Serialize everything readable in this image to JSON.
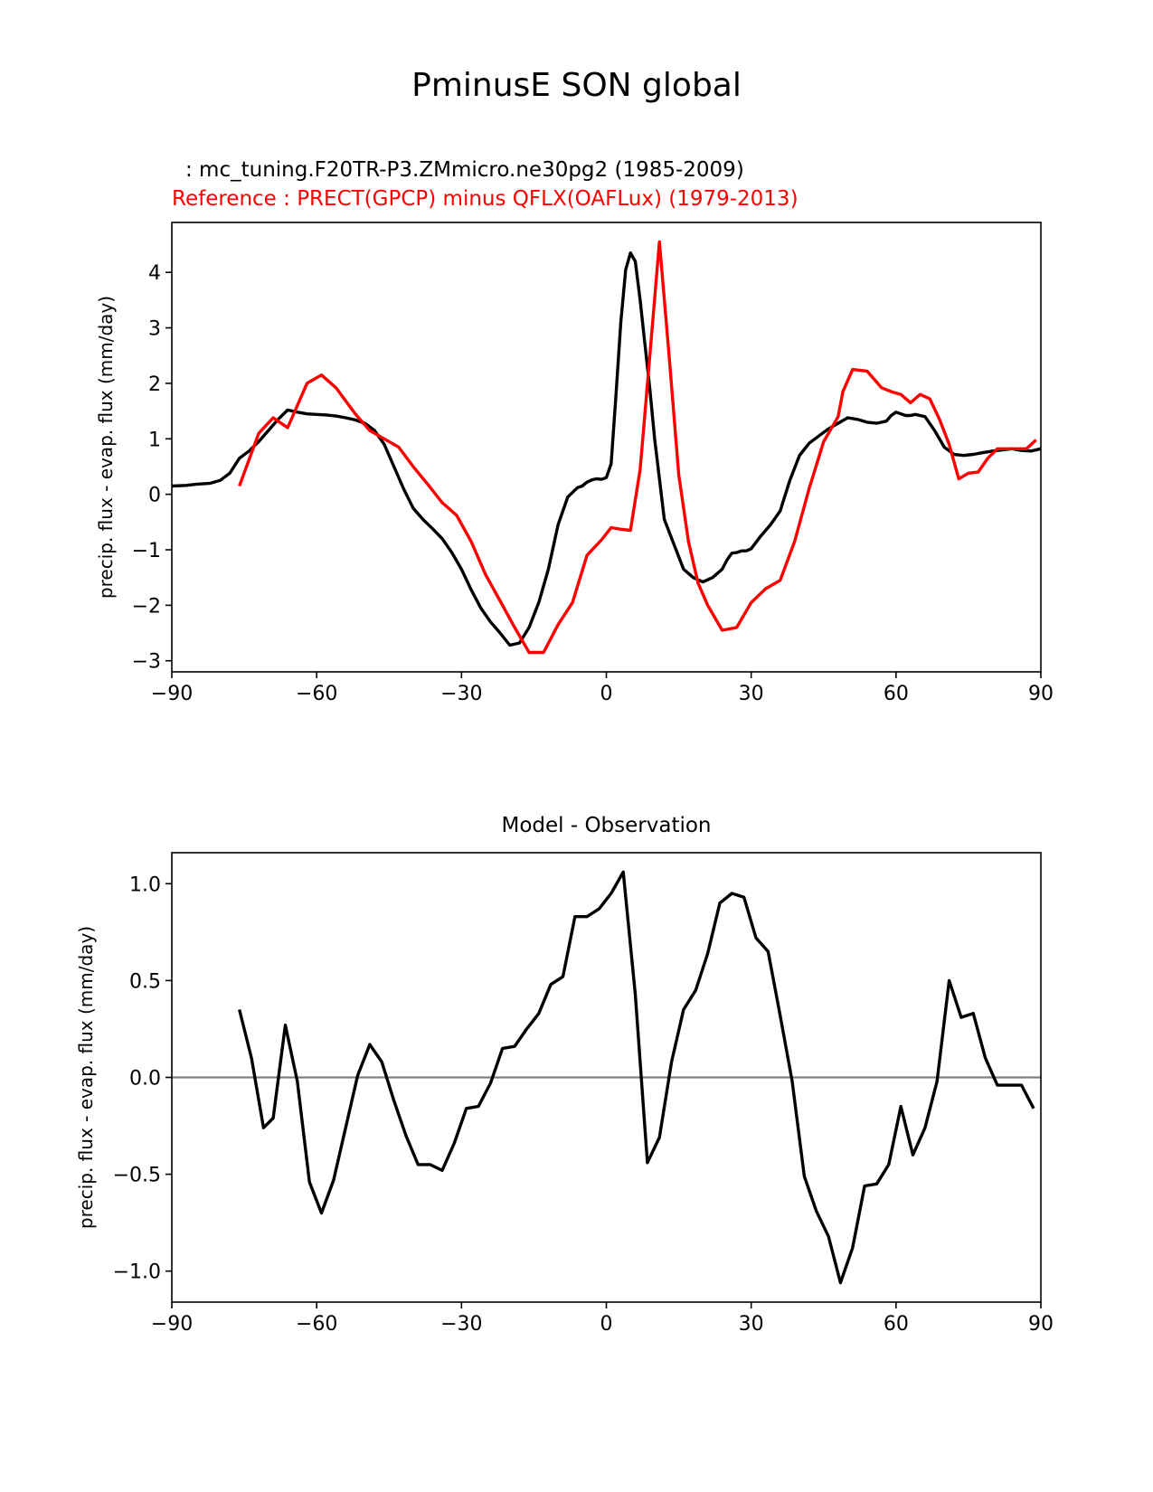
{
  "figure_title": "PminusE SON global",
  "colors": {
    "model": "#000000",
    "reference": "#ff0000",
    "zero_line": "#808080"
  },
  "chart_data": [
    {
      "type": "line",
      "model_label": ": mc_tuning.F20TR-P3.ZMmicro.ne30pg2 (1985-2009)",
      "reference_label": "Reference : PRECT(GPCP) minus QFLX(OAFLux) (1979-2013)",
      "xlabel": "",
      "ylabel": "precip. flux - evap. flux (mm/day)",
      "xlim": [
        -90,
        90
      ],
      "ylim": [
        -3.2,
        4.9
      ],
      "xticks": [
        -90,
        -60,
        -30,
        0,
        30,
        60,
        90
      ],
      "xtick_labels": [
        "−90",
        "−60",
        "−30",
        "0",
        "30",
        "60",
        "90"
      ],
      "yticks": [
        -3,
        -2,
        -1,
        0,
        1,
        2,
        3,
        4
      ],
      "ytick_labels": [
        "−3",
        "−2",
        "−1",
        "0",
        "1",
        "2",
        "3",
        "4"
      ],
      "series": [
        {
          "name": "model",
          "x": [
            -90,
            -87,
            -85,
            -82,
            -80,
            -78,
            -76,
            -74,
            -72,
            -70,
            -68,
            -66,
            -64,
            -62,
            -60,
            -58,
            -56,
            -54,
            -52,
            -50,
            -48,
            -46,
            -44,
            -42,
            -40,
            -38,
            -36,
            -34,
            -32,
            -30,
            -28,
            -26,
            -24,
            -22,
            -20,
            -18,
            -16,
            -14,
            -12,
            -10,
            -8,
            -6,
            -5,
            -4,
            -3,
            -2,
            -1,
            0,
            1,
            2,
            3,
            4,
            5,
            6,
            7,
            8,
            9,
            10,
            12,
            14,
            16,
            18,
            20,
            22,
            24,
            25,
            26,
            27,
            28,
            29,
            30,
            32,
            34,
            36,
            38,
            40,
            42,
            44,
            46,
            48,
            50,
            52,
            54,
            56,
            58,
            59,
            60,
            61,
            62,
            63,
            64,
            66,
            68,
            70,
            72,
            74,
            76,
            78,
            80,
            82,
            84,
            86,
            88,
            90
          ],
          "values": [
            0.15,
            0.16,
            0.18,
            0.2,
            0.25,
            0.38,
            0.65,
            0.78,
            0.95,
            1.15,
            1.35,
            1.52,
            1.48,
            1.45,
            1.44,
            1.43,
            1.41,
            1.38,
            1.34,
            1.28,
            1.15,
            0.9,
            0.5,
            0.1,
            -0.25,
            -0.45,
            -0.62,
            -0.8,
            -1.05,
            -1.35,
            -1.72,
            -2.05,
            -2.3,
            -2.5,
            -2.72,
            -2.68,
            -2.4,
            -1.95,
            -1.35,
            -0.55,
            -0.05,
            0.12,
            0.15,
            0.22,
            0.26,
            0.28,
            0.27,
            0.3,
            0.55,
            1.8,
            3.1,
            4.05,
            4.35,
            4.2,
            3.5,
            2.7,
            1.9,
            1.0,
            -0.45,
            -0.9,
            -1.35,
            -1.5,
            -1.58,
            -1.5,
            -1.35,
            -1.18,
            -1.06,
            -1.05,
            -1.02,
            -1.02,
            -0.98,
            -0.75,
            -0.55,
            -0.3,
            0.25,
            0.7,
            0.92,
            1.05,
            1.18,
            1.28,
            1.38,
            1.35,
            1.3,
            1.28,
            1.32,
            1.42,
            1.48,
            1.45,
            1.42,
            1.42,
            1.44,
            1.4,
            1.15,
            0.85,
            0.72,
            0.7,
            0.72,
            0.75,
            0.78,
            0.8,
            0.82,
            0.79,
            0.78,
            0.82
          ]
        },
        {
          "name": "reference",
          "x": [
            -76,
            -72,
            -69,
            -66,
            -62,
            -59,
            -56,
            -52,
            -49,
            -46,
            -43,
            -40,
            -37,
            -34,
            -31,
            -28,
            -25,
            -22,
            -19,
            -16,
            -13,
            -10,
            -7,
            -4,
            -1,
            1,
            3,
            5,
            7,
            9,
            11,
            13,
            15,
            17,
            19,
            21,
            24,
            27,
            30,
            33,
            36,
            39,
            42,
            45,
            48,
            49,
            51,
            54,
            57,
            59,
            61,
            63,
            65,
            67,
            69,
            71,
            73,
            75,
            77,
            79,
            81,
            83,
            85,
            87,
            89
          ],
          "values": [
            0.15,
            1.1,
            1.38,
            1.2,
            2.0,
            2.15,
            1.92,
            1.45,
            1.15,
            1.0,
            0.85,
            0.5,
            0.18,
            -0.15,
            -0.38,
            -0.85,
            -1.45,
            -1.92,
            -2.4,
            -2.85,
            -2.85,
            -2.35,
            -1.95,
            -1.1,
            -0.82,
            -0.6,
            -0.63,
            -0.65,
            0.45,
            2.5,
            4.55,
            2.5,
            0.35,
            -0.85,
            -1.6,
            -2.0,
            -2.45,
            -2.4,
            -1.95,
            -1.7,
            -1.55,
            -0.85,
            0.1,
            0.95,
            1.4,
            1.85,
            2.25,
            2.22,
            1.92,
            1.85,
            1.8,
            1.65,
            1.8,
            1.72,
            1.35,
            0.9,
            0.28,
            0.38,
            0.4,
            0.65,
            0.82,
            0.82,
            0.82,
            0.82,
            0.98
          ]
        }
      ]
    },
    {
      "type": "line",
      "title": "Model - Observation",
      "xlabel": "",
      "ylabel": "precip. flux - evap. flux (mm/day)",
      "xlim": [
        -90,
        90
      ],
      "ylim": [
        -1.16,
        1.16
      ],
      "xticks": [
        -90,
        -60,
        -30,
        0,
        30,
        60,
        90
      ],
      "xtick_labels": [
        "−90",
        "−60",
        "−30",
        "0",
        "30",
        "60",
        "90"
      ],
      "yticks": [
        -1.0,
        -0.5,
        0.0,
        0.5,
        1.0
      ],
      "ytick_labels": [
        "−1.0",
        "−0.5",
        "0.0",
        "0.5",
        "1.0"
      ],
      "zero_line": 0,
      "series": [
        {
          "name": "model minus observation",
          "x": [
            -76,
            -73.5,
            -71,
            -69,
            -66.5,
            -64,
            -61.5,
            -59,
            -56.5,
            -54,
            -51.5,
            -49,
            -46.5,
            -44,
            -41.5,
            -39,
            -36.5,
            -34,
            -31.5,
            -29,
            -26.5,
            -24,
            -21.5,
            -19,
            -16.5,
            -14,
            -11.5,
            -9,
            -6.5,
            -4,
            -1.5,
            1,
            3.5,
            6,
            8.5,
            11,
            13.5,
            16,
            18.5,
            21,
            23.5,
            26,
            28.5,
            31,
            33.5,
            36,
            38.5,
            41,
            43.5,
            46,
            48.5,
            51,
            53.5,
            56,
            58.5,
            61,
            63.5,
            66,
            68.5,
            71,
            73.5,
            76,
            78.5,
            81,
            83.5,
            86,
            88.5
          ],
          "values": [
            0.35,
            0.1,
            -0.26,
            -0.21,
            0.27,
            -0.02,
            -0.54,
            -0.7,
            -0.53,
            -0.26,
            0.01,
            0.17,
            0.08,
            -0.12,
            -0.3,
            -0.45,
            -0.45,
            -0.48,
            -0.34,
            -0.16,
            -0.15,
            -0.03,
            0.15,
            0.16,
            0.25,
            0.33,
            0.48,
            0.52,
            0.83,
            0.83,
            0.87,
            0.95,
            1.06,
            0.43,
            -0.44,
            -0.31,
            0.08,
            0.35,
            0.45,
            0.64,
            0.9,
            0.95,
            0.93,
            0.72,
            0.65,
            0.32,
            -0.02,
            -0.51,
            -0.69,
            -0.82,
            -1.06,
            -0.88,
            -0.56,
            -0.55,
            -0.45,
            -0.15,
            -0.4,
            -0.26,
            -0.02,
            0.5,
            0.31,
            0.33,
            0.1,
            -0.04,
            -0.04,
            -0.04,
            -0.16
          ]
        }
      ]
    }
  ]
}
